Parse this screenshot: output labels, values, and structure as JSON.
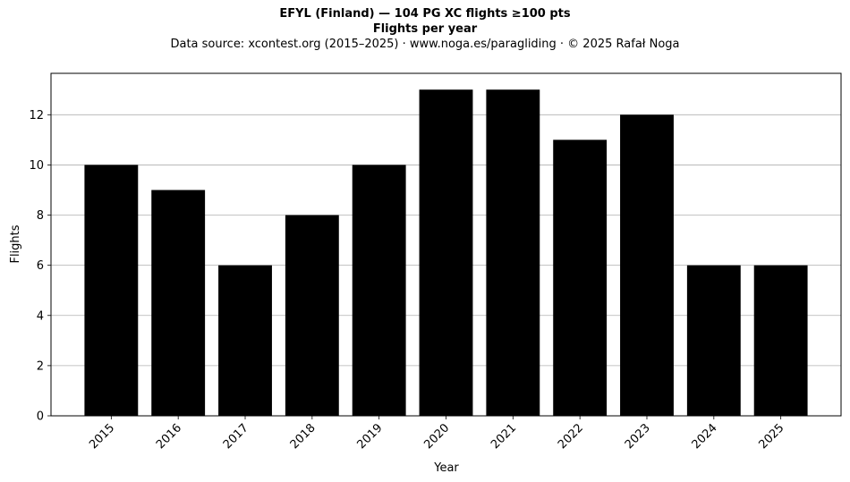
{
  "chart_data": {
    "type": "bar",
    "title": "EFYL (Finland)  —  104 PG XC flights ≥100 pts",
    "subtitle": "Flights per year",
    "source": "Data source: xcontest.org (2015–2025)  ·  www.noga.es/paragliding  ·  © 2025 Rafał Noga",
    "xlabel": "Year",
    "ylabel": "Flights",
    "categories": [
      "2015",
      "2016",
      "2017",
      "2018",
      "2019",
      "2020",
      "2021",
      "2022",
      "2023",
      "2024",
      "2025"
    ],
    "values": [
      10,
      9,
      6,
      8,
      10,
      13,
      13,
      11,
      12,
      6,
      6
    ],
    "ylim": [
      0,
      13.65
    ],
    "yticks": [
      0,
      2,
      4,
      6,
      8,
      10,
      12
    ],
    "grid": "y-major",
    "bar_color": "#000000",
    "grid_color": "#b0b0b0"
  }
}
